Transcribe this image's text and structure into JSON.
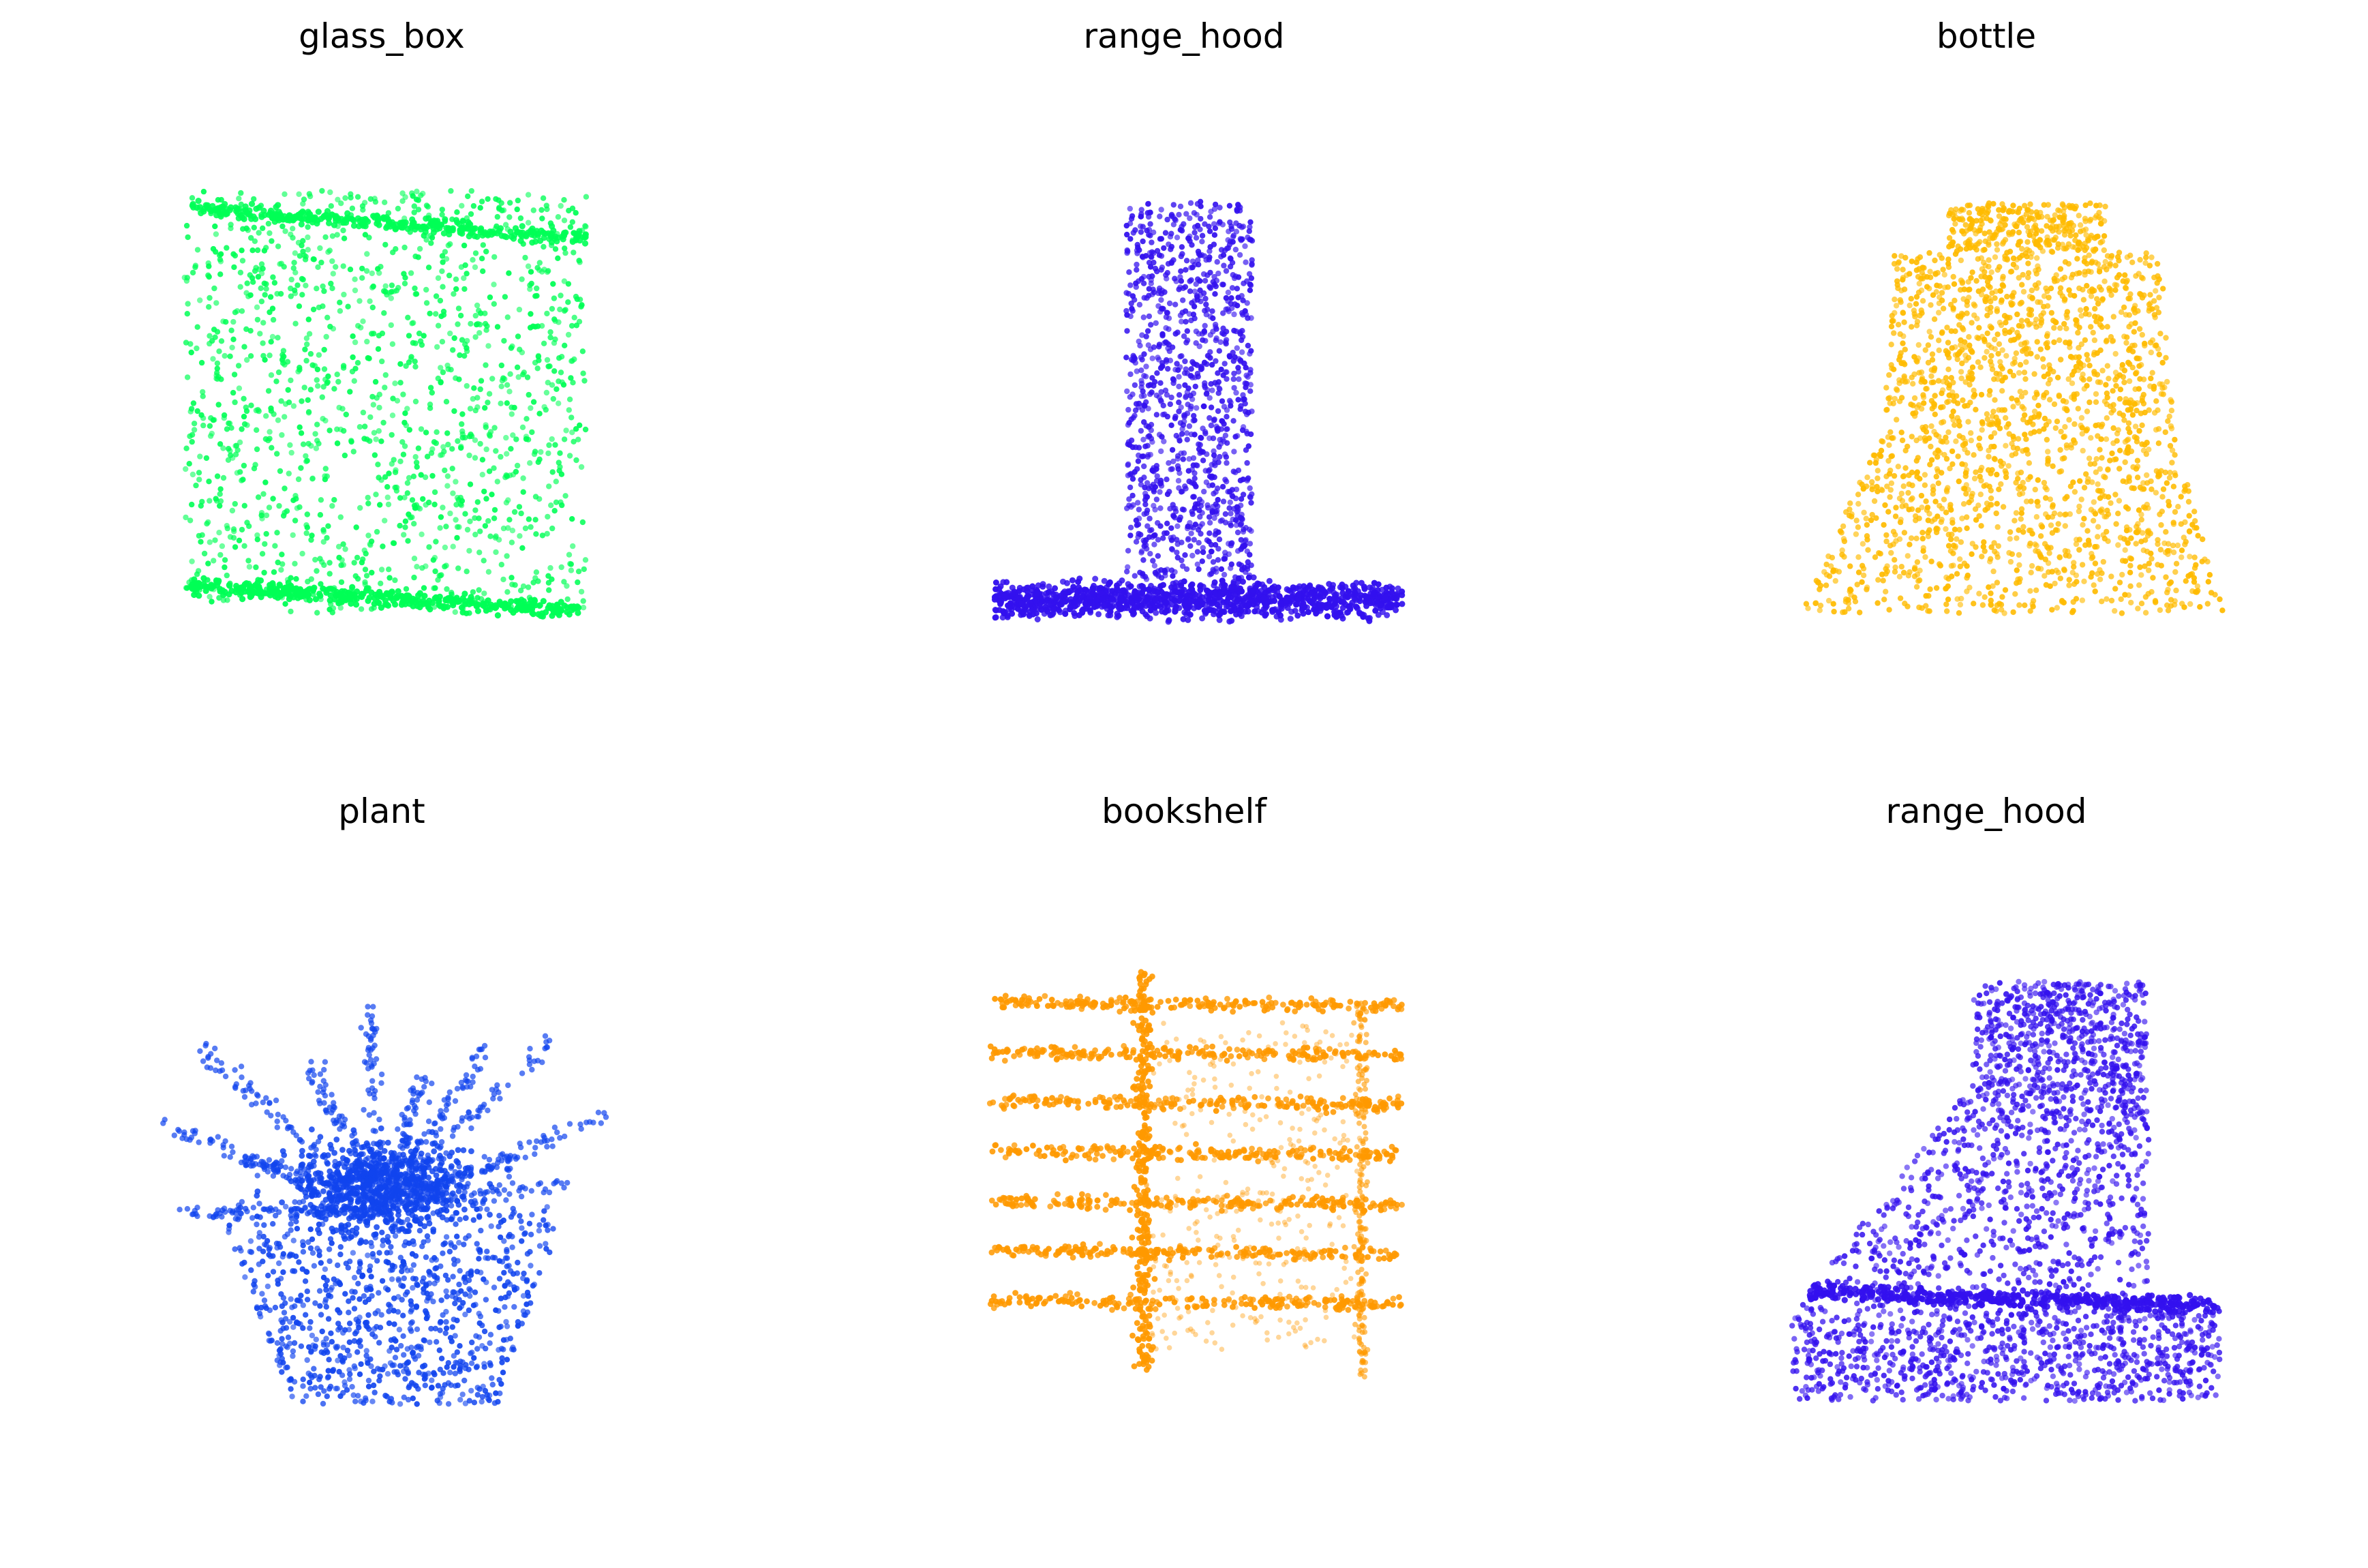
{
  "figure": {
    "panels": [
      {
        "title": "glass_box",
        "shape": "box",
        "color": "#00ff55"
      },
      {
        "title": "range_hood",
        "shape": "hood_flat",
        "color": "#3311ee"
      },
      {
        "title": "bottle",
        "shape": "bottle",
        "color": "#ffbb00"
      },
      {
        "title": "plant",
        "shape": "plant",
        "color": "#1144ee"
      },
      {
        "title": "bookshelf",
        "shape": "bookshelf",
        "color": "#ff9900"
      },
      {
        "title": "range_hood",
        "shape": "hood_tall",
        "color": "#3311ee"
      }
    ]
  }
}
